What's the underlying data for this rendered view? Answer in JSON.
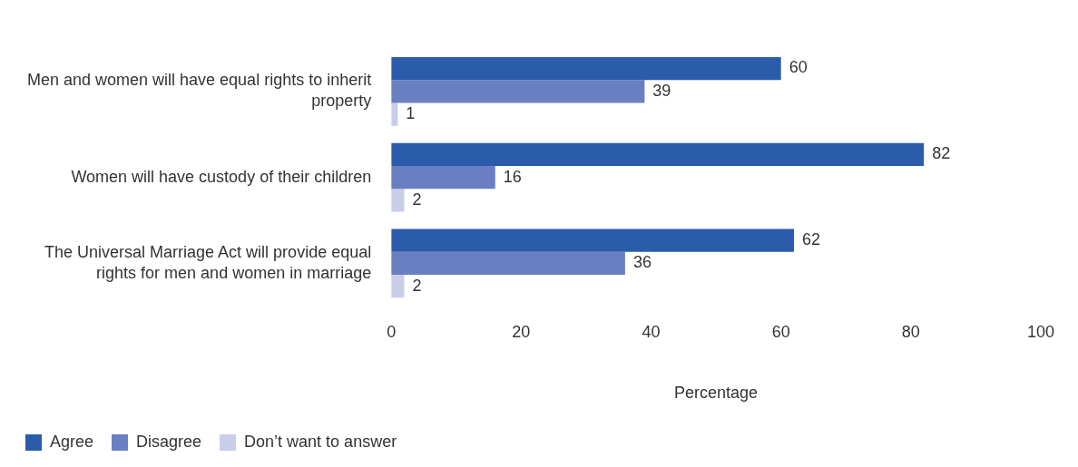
{
  "chart_data": {
    "type": "bar",
    "orientation": "horizontal",
    "categories": [
      "Men and women will have equal rights to inherit property",
      "Women will have custody of their children",
      "The Universal Marriage Act will provide equal rights for men and women in marriage"
    ],
    "series": [
      {
        "name": "Agree",
        "color": "#2a5caa",
        "values": [
          60,
          82,
          62
        ]
      },
      {
        "name": "Disagree",
        "color": "#6a7fc1",
        "values": [
          39,
          16,
          36
        ]
      },
      {
        "name": "Don’t want to answer",
        "color": "#c9cde8",
        "values": [
          1,
          2,
          2
        ]
      }
    ],
    "xlabel": "Percentage",
    "xlim": [
      0,
      100
    ],
    "xticks": [
      0,
      20,
      40,
      60,
      80,
      100
    ],
    "grid": false,
    "legend": "bottom left",
    "data_labels": true
  }
}
